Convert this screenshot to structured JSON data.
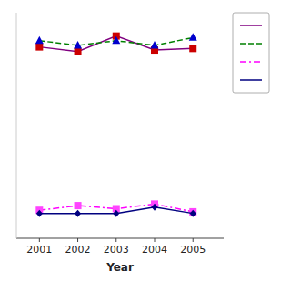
{
  "chart_data": {
    "type": "line",
    "x_label": "Year",
    "x": [
      2001,
      2002,
      2003,
      2004,
      2005
    ],
    "xlim": [
      2000.4,
      2005.8
    ],
    "xticks": [
      2001,
      2002,
      2003,
      2004,
      2005
    ],
    "ylim": [
      30,
      175
    ],
    "tick_labels": "x",
    "grid": false,
    "legend": "right",
    "series": [
      {
        "color": "#800080",
        "line_style": "solid",
        "marker": "square",
        "colors": [
          "#cc0000",
          "#cc0000",
          "#cc0000",
          "#cc0000",
          "#cc0000"
        ],
        "values": [
          153,
          150,
          160,
          151,
          152
        ]
      },
      {
        "color": "#008000",
        "line_style": "dashed",
        "marker": "triangle",
        "colors": [
          "#0000cc",
          "#0000cc",
          "#0000cc",
          "#0000cc",
          "#0000cc"
        ],
        "values": [
          157,
          154,
          157,
          154,
          159
        ]
      },
      {
        "color": "#ff00ff",
        "line_style": "dashdot",
        "marker": "square",
        "colors": [
          "#ff44ff",
          "#ff44ff",
          "#ff44ff",
          "#ff44ff",
          "#ff44ff"
        ],
        "values": [
          48,
          51,
          49,
          52,
          47
        ]
      },
      {
        "color": "#000080",
        "line_style": "solid",
        "marker": "diamond",
        "colors": [
          "#000080",
          "#000080",
          "#000080",
          "#000080",
          "#000080"
        ],
        "values": [
          46,
          46,
          46,
          50,
          46
        ]
      }
    ]
  }
}
